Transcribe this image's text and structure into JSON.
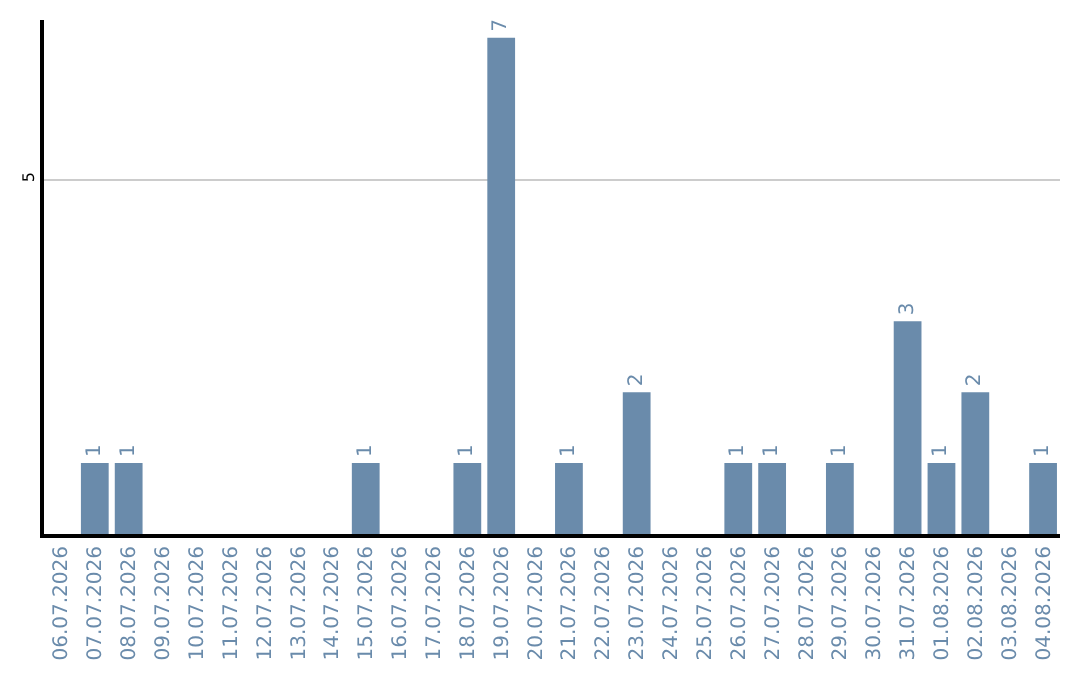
{
  "chart_data": {
    "type": "bar",
    "categories": [
      "06.07.2026",
      "07.07.2026",
      "08.07.2026",
      "09.07.2026",
      "10.07.2026",
      "11.07.2026",
      "12.07.2026",
      "13.07.2026",
      "14.07.2026",
      "15.07.2026",
      "16.07.2026",
      "17.07.2026",
      "18.07.2026",
      "19.07.2026",
      "20.07.2026",
      "21.07.2026",
      "22.07.2026",
      "23.07.2026",
      "24.07.2026",
      "25.07.2026",
      "26.07.2026",
      "27.07.2026",
      "28.07.2026",
      "29.07.2026",
      "30.07.2026",
      "31.07.2026",
      "01.08.2026",
      "02.08.2026",
      "03.08.2026",
      "04.08.2026"
    ],
    "values": [
      0,
      1,
      1,
      0,
      0,
      0,
      0,
      0,
      0,
      1,
      0,
      0,
      1,
      7,
      0,
      1,
      0,
      2,
      0,
      0,
      1,
      1,
      0,
      1,
      0,
      3,
      1,
      2,
      0,
      1
    ],
    "value_labels": [
      null,
      "1",
      "1",
      null,
      null,
      null,
      null,
      null,
      null,
      "1",
      null,
      null,
      "1",
      "7",
      null,
      "1",
      null,
      "2",
      null,
      null,
      "1",
      "1",
      null,
      "1",
      null,
      "3",
      "1",
      "2",
      null,
      "1"
    ],
    "color": "#6a8bab",
    "ylim": [
      0,
      7.25
    ],
    "yticks": [
      5
    ],
    "grid": "y",
    "legend": false
  }
}
